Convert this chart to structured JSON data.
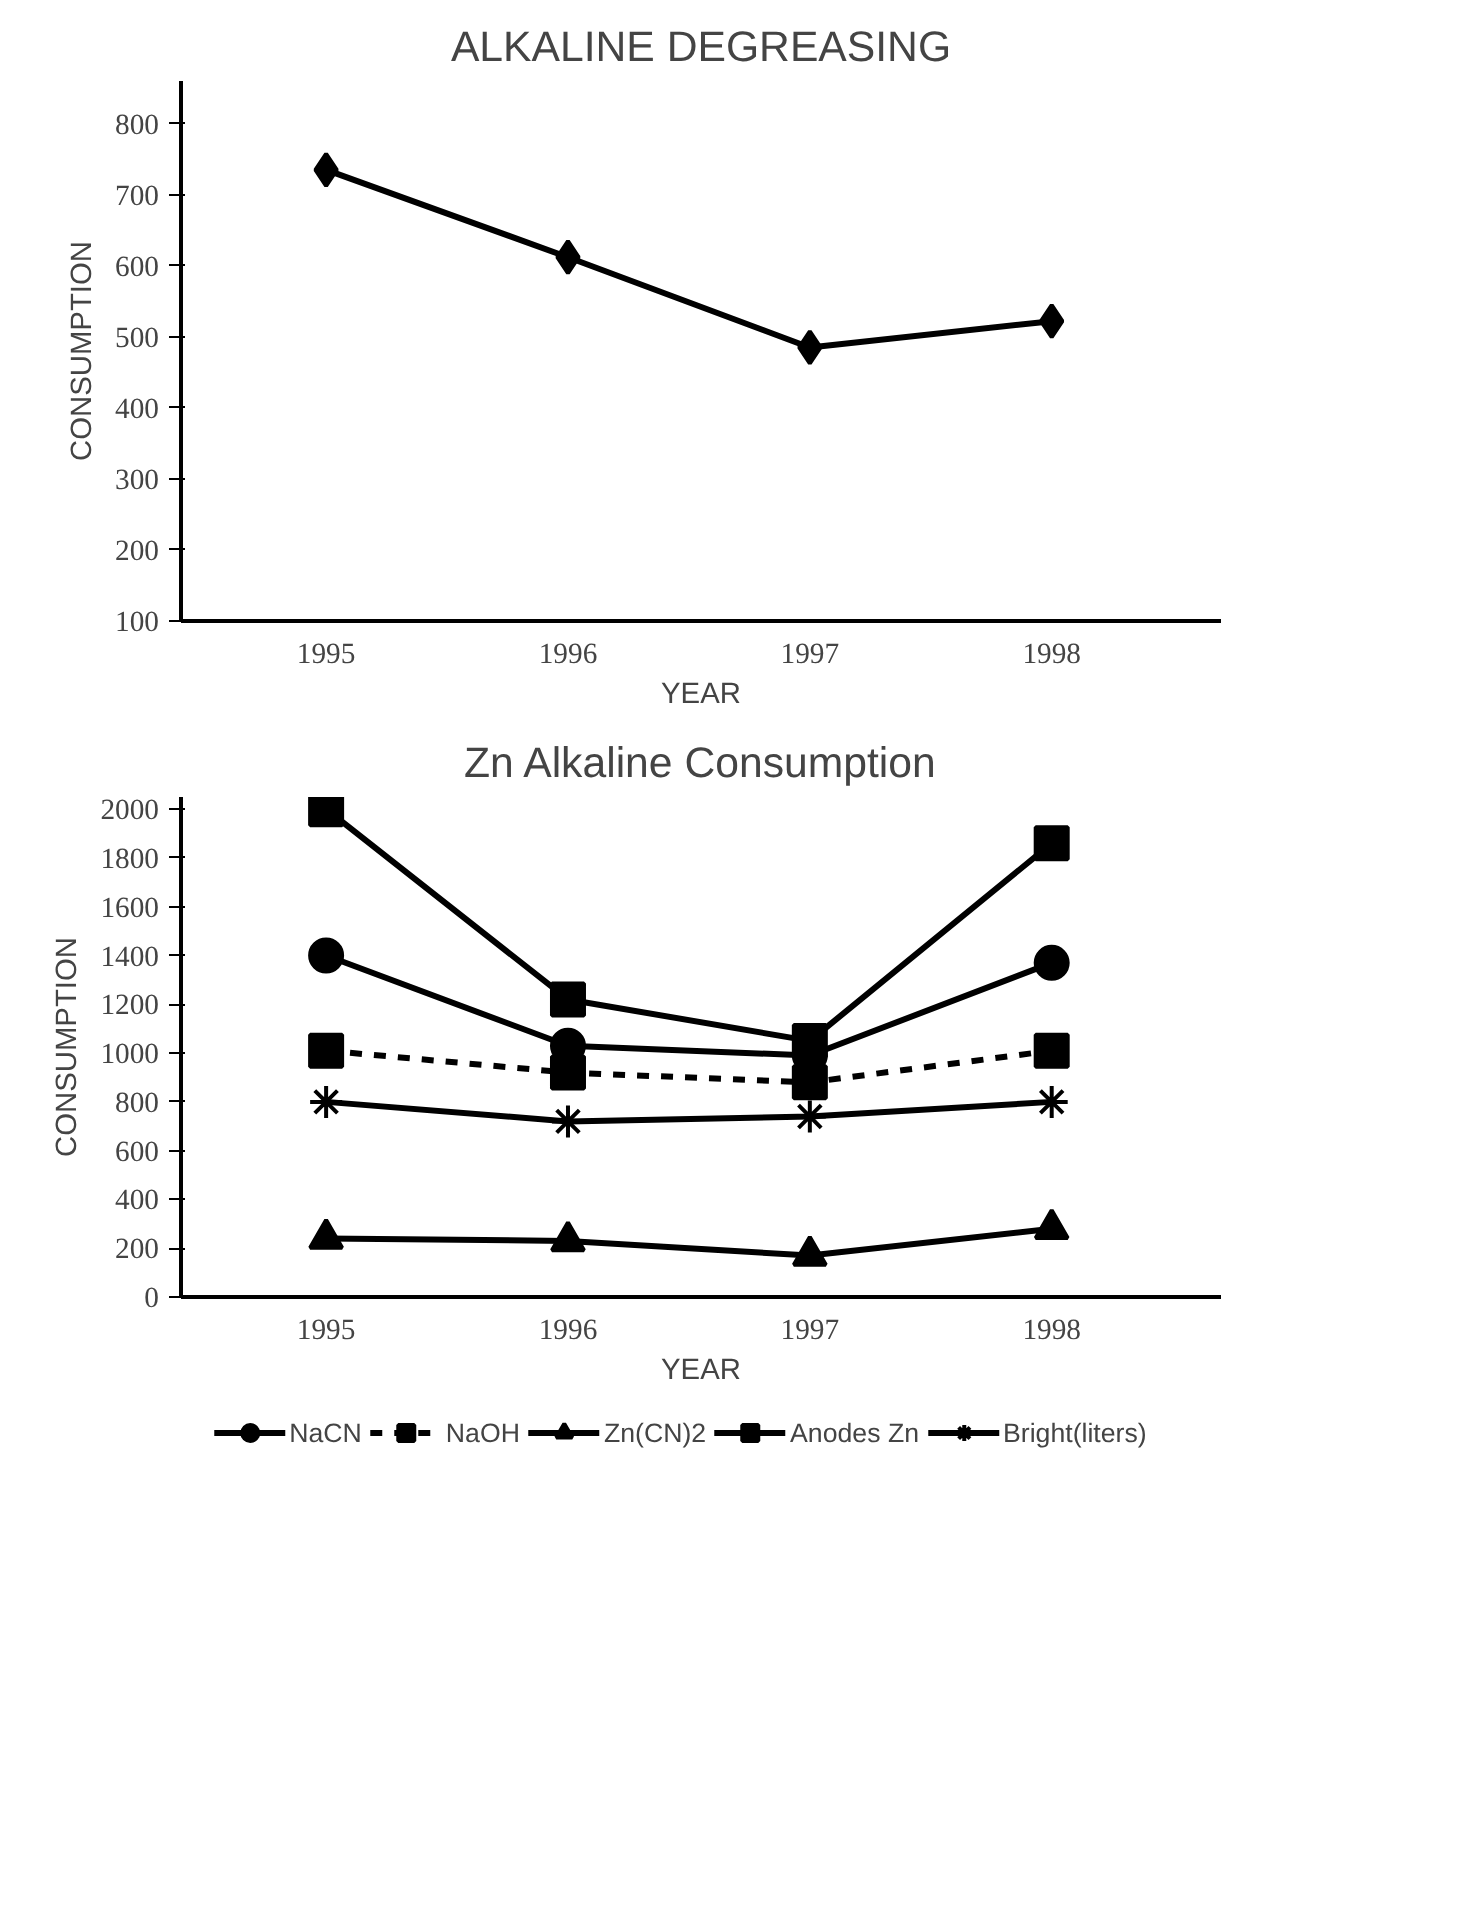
{
  "chart_data": [
    {
      "type": "line",
      "title": "ALKALINE DEGREASING",
      "xlabel": "YEAR",
      "ylabel": "CONSUMPTION",
      "categories": [
        "1995",
        "1996",
        "1997",
        "1998"
      ],
      "series": [
        {
          "color": "#000000",
          "marker": "diamond",
          "values": [
            735,
            612,
            485,
            522
          ]
        }
      ],
      "ylim": [
        100,
        860
      ],
      "yticks": [
        100,
        200,
        300,
        400,
        500,
        600,
        700,
        800
      ],
      "grid": false,
      "line_style": "solid"
    },
    {
      "type": "line",
      "title": "Zn Alkaline Consumption",
      "xlabel": "YEAR",
      "ylabel": "CONSUMPTION",
      "categories": [
        "1995",
        "1996",
        "1997",
        "1998"
      ],
      "series": [
        {
          "name": "NaCN",
          "color": "#000000",
          "marker": "circle",
          "values": [
            1400,
            1030,
            990,
            1370
          ]
        },
        {
          "name": "NaOH",
          "color": "#000000",
          "marker": "square",
          "line_style": "dashed",
          "values": [
            1010,
            920,
            880,
            1010
          ]
        },
        {
          "name": "Zn(CN)2",
          "color": "#000000",
          "marker": "triangle",
          "values": [
            240,
            230,
            170,
            280
          ]
        },
        {
          "name": "Anodes Zn",
          "color": "#000000",
          "marker": "square",
          "values": [
            2000,
            1220,
            1050,
            1860
          ]
        },
        {
          "name": "Bright(liters)",
          "color": "#000000",
          "marker": "cross",
          "values": [
            800,
            720,
            740,
            800
          ]
        }
      ],
      "ylim": [
        0,
        2050
      ],
      "yticks": [
        0,
        200,
        400,
        600,
        800,
        1000,
        1200,
        1400,
        1600,
        1800,
        2000
      ],
      "grid": false,
      "legend": "bottom",
      "line_style": "solid"
    }
  ]
}
